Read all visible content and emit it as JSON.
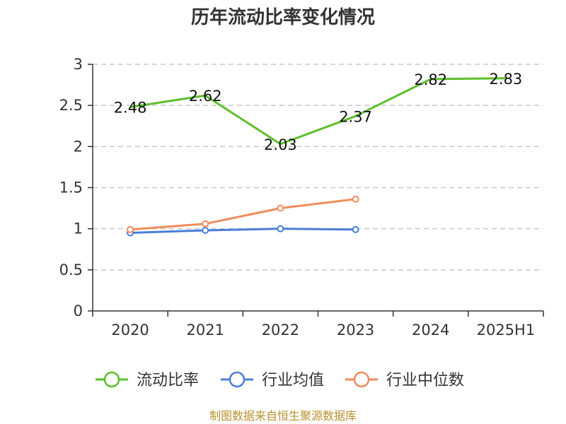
{
  "chart_data": {
    "type": "line",
    "title": "历年流动比率变化情况",
    "categories": [
      "2020",
      "2021",
      "2022",
      "2023",
      "2024",
      "2025H1"
    ],
    "ylim": [
      0,
      3
    ],
    "yticks": [
      "0",
      "0.5",
      "1",
      "1.5",
      "2",
      "2.5",
      "3"
    ],
    "grid": true,
    "legend_position": "bottom",
    "series": [
      {
        "name": "流动比率",
        "color": "#5cbf2a",
        "values": [
          2.48,
          2.62,
          2.03,
          2.37,
          2.82,
          2.83
        ],
        "labels": [
          "2.48",
          "2.62",
          "2.03",
          "2.37",
          "2.82",
          "2.83"
        ]
      },
      {
        "name": "行业均值",
        "color": "#4a7fd8",
        "values": [
          0.95,
          0.98,
          1.0,
          0.99,
          null,
          null
        ]
      },
      {
        "name": "行业中位数",
        "color": "#f08c5a",
        "values": [
          0.99,
          1.06,
          1.25,
          1.36,
          null,
          null
        ]
      }
    ],
    "source": "制图数据来自恒生聚源数据库"
  }
}
